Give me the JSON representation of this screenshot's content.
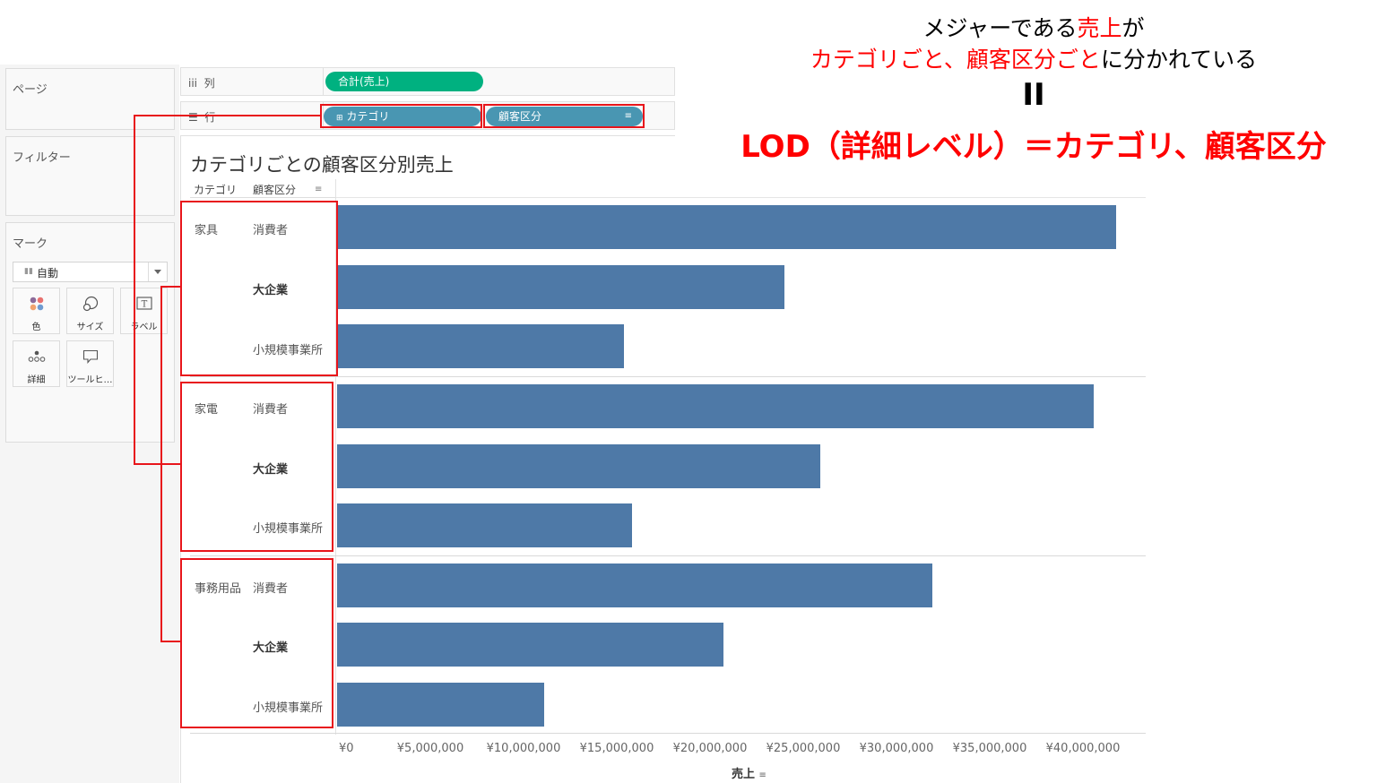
{
  "left_panel": {
    "pages_title": "ページ",
    "filters_title": "フィルター",
    "marks": {
      "title": "マーク",
      "type_label": "自動",
      "buttons": [
        {
          "label": "色",
          "icon": "color-icon"
        },
        {
          "label": "サイズ",
          "icon": "size-icon"
        },
        {
          "label": "ラベル",
          "icon": "label-icon"
        },
        {
          "label": "詳細",
          "icon": "detail-icon"
        },
        {
          "label": "ツールヒ…",
          "icon": "tooltip-icon"
        }
      ]
    }
  },
  "shelves": {
    "columns": {
      "label": "列",
      "icon": "iii",
      "pills": [
        "合計(売上)"
      ]
    },
    "rows": {
      "label": "行",
      "icon": "☰",
      "pills": [
        "カテゴリ",
        "顧客区分"
      ]
    }
  },
  "sheet": {
    "title": "カテゴリごとの顧客区分別売上",
    "headers": [
      "カテゴリ",
      "顧客区分"
    ],
    "rows": [
      {
        "category": "家具",
        "segment": "消費者"
      },
      {
        "category": "",
        "segment": "大企業"
      },
      {
        "category": "",
        "segment": "小規模事業所"
      },
      {
        "category": "家電",
        "segment": "消費者"
      },
      {
        "category": "",
        "segment": "大企業"
      },
      {
        "category": "",
        "segment": "小規模事業所"
      },
      {
        "category": "事務用品",
        "segment": "消費者"
      },
      {
        "category": "",
        "segment": "大企業"
      },
      {
        "category": "",
        "segment": "小規模事業所"
      }
    ],
    "axis_ticks": [
      "¥0",
      "¥5,000,000",
      "¥10,000,000",
      "¥15,000,000",
      "¥20,000,000",
      "¥25,000,000",
      "¥30,000,000",
      "¥35,000,000",
      "¥40,000,000"
    ],
    "axis_title": "売上"
  },
  "annotation": {
    "line1_black1": "メジャーである",
    "line1_red": "売上",
    "line1_black2": "が",
    "line2_red1": "カテゴリごと、",
    "line2_red2": "顧客区分ごと",
    "line2_black": "に分かれている",
    "equals": "II",
    "line4": "LOD（詳細レベル）＝カテゴリ、顧客区分"
  },
  "colors": {
    "bar": "#4e79a7",
    "measure_pill": "#00b180",
    "dimension_pill": "#4996b2",
    "annotation_red": "#ff0000"
  },
  "chart_data": {
    "type": "bar",
    "orientation": "horizontal",
    "title": "カテゴリごとの顧客区分別売上",
    "xlabel": "売上",
    "ylabel": "カテゴリ / 顧客区分",
    "categories": [
      "家具 / 消費者",
      "家具 / 大企業",
      "家具 / 小規模事業所",
      "家電 / 消費者",
      "家電 / 大企業",
      "家電 / 小規模事業所",
      "事務用品 / 消費者",
      "事務用品 / 大企業",
      "事務用品 / 小規模事業所"
    ],
    "values": [
      41800000,
      24000000,
      15400000,
      40600000,
      25900000,
      15800000,
      31900000,
      20700000,
      11100000
    ],
    "xlim": [
      0,
      43400000
    ],
    "xticks": [
      0,
      5000000,
      10000000,
      15000000,
      20000000,
      25000000,
      30000000,
      35000000,
      40000000
    ],
    "grid": false,
    "legend": "none"
  }
}
